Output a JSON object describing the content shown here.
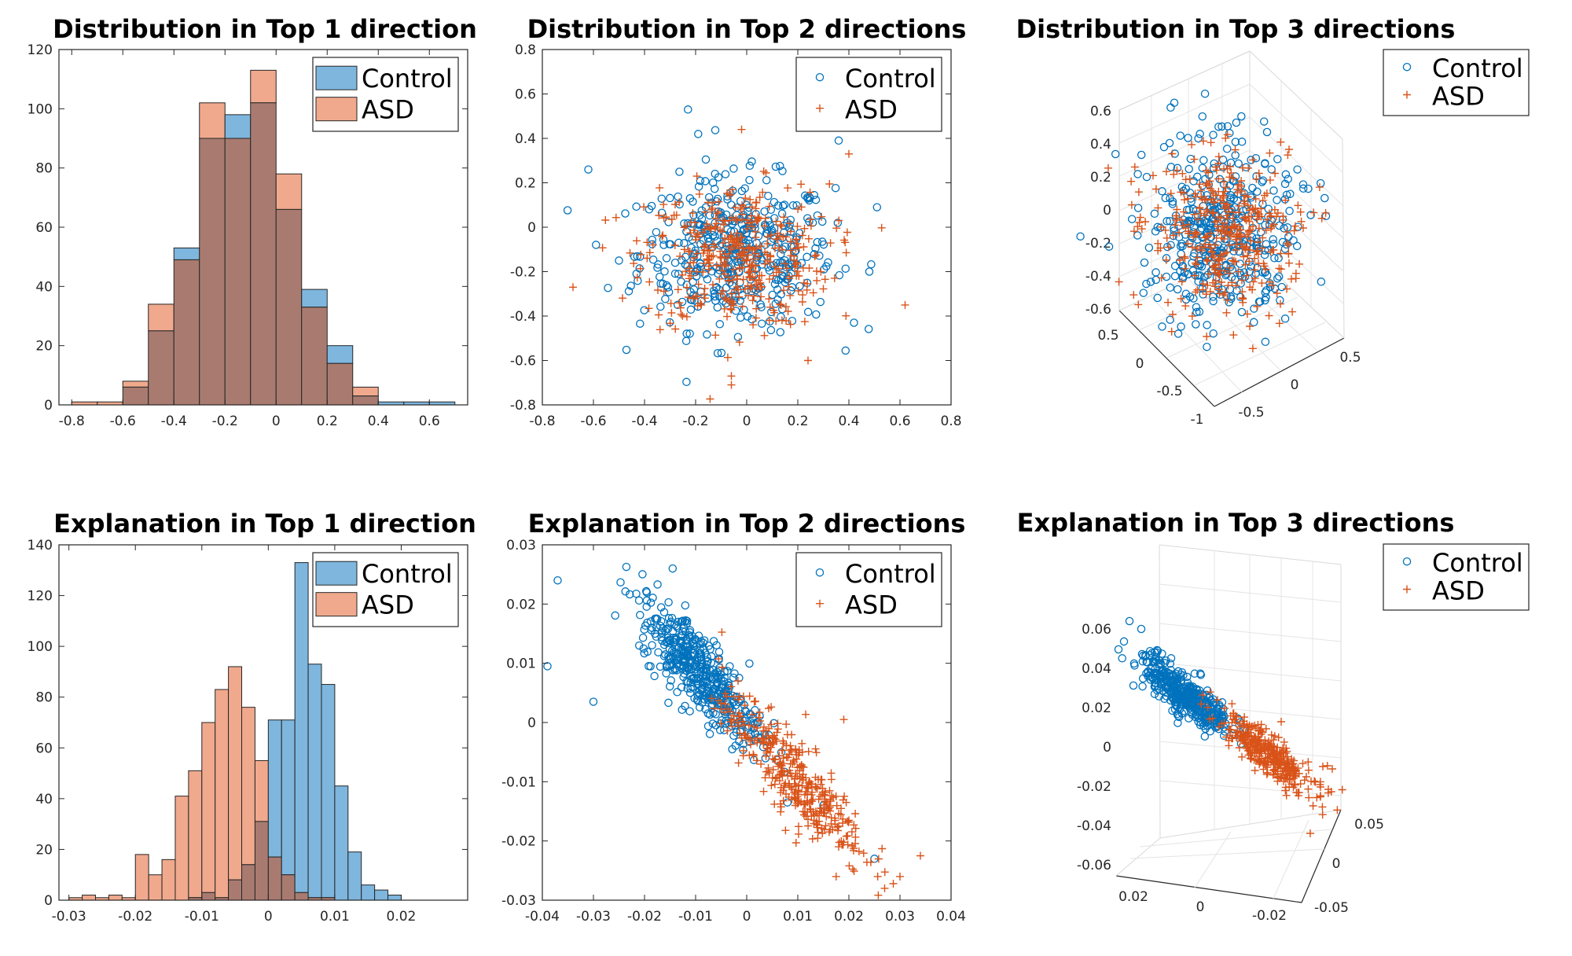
{
  "colors": {
    "control": "#0072BD",
    "asd": "#D95319",
    "control_fill": "#7EB6DE",
    "asd_fill": "#F0A98D",
    "overlap_fill": "#A97B70"
  },
  "chart_data": [
    {
      "type": "histogram",
      "title": "Distribution in Top 1 direction",
      "xlim": [
        -0.85,
        0.75
      ],
      "ylim": [
        0,
        120
      ],
      "xticks": [
        "-0.8",
        "-0.6",
        "-0.4",
        "-0.2",
        "0",
        "0.2",
        "0.4",
        "0.6"
      ],
      "yticks": [
        "0",
        "20",
        "40",
        "60",
        "80",
        "100",
        "120"
      ],
      "legend": {
        "position": "top-right",
        "entries": [
          "Control",
          "ASD"
        ]
      },
      "bin_edges": [
        -0.8,
        -0.7,
        -0.6,
        -0.5,
        -0.4,
        -0.3,
        -0.2,
        -0.1,
        0,
        0.1,
        0.2,
        0.3,
        0.4,
        0.5,
        0.6,
        0.7
      ],
      "series": [
        {
          "name": "Control",
          "values": [
            0,
            0,
            6,
            25,
            53,
            90,
            98,
            102,
            66,
            39,
            20,
            3,
            1,
            1,
            1
          ]
        },
        {
          "name": "ASD",
          "values": [
            1,
            1,
            8,
            34,
            49,
            102,
            90,
            113,
            78,
            33,
            14,
            6,
            0,
            0,
            0
          ]
        }
      ]
    },
    {
      "type": "scatter",
      "title": "Distribution in Top 2 directions",
      "xlim": [
        -0.8,
        0.8
      ],
      "ylim": [
        -0.8,
        0.8
      ],
      "xticks": [
        "-0.8",
        "-0.6",
        "-0.4",
        "-0.2",
        "0",
        "0.2",
        "0.4",
        "0.6",
        "0.8"
      ],
      "yticks": [
        "-0.8",
        "-0.6",
        "-0.4",
        "-0.2",
        "0",
        "0.2",
        "0.4",
        "0.6",
        "0.8"
      ],
      "legend": {
        "position": "top-right",
        "entries": [
          "Control",
          "ASD"
        ]
      },
      "series": [
        {
          "name": "Control",
          "marker": "circle",
          "count": 450,
          "center": [
            -0.04,
            -0.12
          ],
          "spread": [
            0.19,
            0.17
          ],
          "extra": [
            [
              -0.62,
              0.26
            ],
            [
              -0.23,
              0.53
            ],
            [
              -0.19,
              0.42
            ],
            [
              0.36,
              0.39
            ],
            [
              0.51,
              0.09
            ],
            [
              -0.5,
              -0.15
            ],
            [
              0.48,
              -0.2
            ],
            [
              0.42,
              -0.43
            ]
          ]
        },
        {
          "name": "ASD",
          "marker": "plus",
          "count": 400,
          "center": [
            -0.04,
            -0.13
          ],
          "spread": [
            0.18,
            0.16
          ],
          "extra": [
            [
              -0.68,
              -0.27
            ],
            [
              0.62,
              -0.35
            ],
            [
              -0.06,
              -0.71
            ],
            [
              -0.06,
              -0.67
            ],
            [
              0.24,
              -0.6
            ],
            [
              0.4,
              0.33
            ],
            [
              -0.02,
              0.44
            ]
          ]
        }
      ]
    },
    {
      "type": "scatter3d",
      "title": "Distribution in Top 3 directions",
      "zticks": [
        "-0.6",
        "-0.4",
        "-0.2",
        "0",
        "0.2",
        "0.4",
        "0.6"
      ],
      "xticks": [
        "-1",
        "-0.5",
        "0",
        "0.5"
      ],
      "yticks": [
        "-0.5",
        "0",
        "0.5"
      ],
      "legend": {
        "position": "top-right",
        "entries": [
          "Control",
          "ASD"
        ]
      },
      "series": [
        {
          "name": "Control",
          "marker": "circle",
          "count": 420
        },
        {
          "name": "ASD",
          "marker": "plus",
          "count": 380
        }
      ]
    },
    {
      "type": "histogram",
      "title": "Explanation in Top 1 direction",
      "xlim": [
        -0.0315,
        0.03
      ],
      "ylim": [
        0,
        140
      ],
      "xticks": [
        "-0.03",
        "-0.02",
        "-0.01",
        "0",
        "0.01",
        "0.02"
      ],
      "yticks": [
        "0",
        "20",
        "40",
        "60",
        "80",
        "100",
        "120",
        "140"
      ],
      "legend": {
        "position": "top-right",
        "entries": [
          "Control",
          "ASD"
        ]
      },
      "bin_edges": [
        -0.03,
        -0.028,
        -0.026,
        -0.024,
        -0.022,
        -0.02,
        -0.018,
        -0.016,
        -0.014,
        -0.012,
        -0.01,
        -0.008,
        -0.006,
        -0.004,
        -0.002,
        0,
        0.002,
        0.004,
        0.006,
        0.008,
        0.01,
        0.012,
        0.014,
        0.016,
        0.018,
        0.02,
        0.022,
        0.024,
        0.026
      ],
      "series": [
        {
          "name": "Control",
          "values": [
            0,
            0,
            0,
            0,
            0,
            0,
            0,
            0,
            0,
            1,
            3,
            1,
            8,
            14,
            31,
            71,
            71,
            133,
            93,
            85,
            45,
            19,
            6,
            4,
            2,
            0,
            0,
            0
          ]
        },
        {
          "name": "ASD",
          "values": [
            1,
            2,
            1,
            2,
            1,
            18,
            10,
            16,
            41,
            51,
            70,
            83,
            92,
            76,
            55,
            17,
            10,
            3,
            1,
            1,
            0,
            0,
            0,
            0,
            0,
            0,
            0,
            0
          ]
        }
      ]
    },
    {
      "type": "scatter",
      "title": "Explanation in Top 2 directions",
      "xlim": [
        -0.04,
        0.04
      ],
      "ylim": [
        -0.03,
        0.03
      ],
      "xticks": [
        "-0.04",
        "-0.03",
        "-0.02",
        "-0.01",
        "0",
        "0.01",
        "0.02",
        "0.03",
        "0.04"
      ],
      "yticks": [
        "-0.03",
        "-0.02",
        "-0.01",
        "0",
        "0.01",
        "0.02",
        "0.03"
      ],
      "legend": {
        "position": "top-right",
        "entries": [
          "Control",
          "ASD"
        ]
      },
      "series": [
        {
          "name": "Control",
          "marker": "circle",
          "count": 450,
          "center": [
            -0.009,
            0.0085
          ],
          "slope": -0.85,
          "spread": [
            0.006,
            0.0035
          ],
          "extra": [
            [
              -0.039,
              0.0095
            ],
            [
              -0.037,
              0.024
            ],
            [
              -0.0145,
              0.026
            ],
            [
              -0.03,
              0.0035
            ],
            [
              0.025,
              -0.023
            ],
            [
              0.015,
              -0.014
            ]
          ]
        },
        {
          "name": "ASD",
          "marker": "plus",
          "count": 380,
          "center": [
            0.009,
            -0.009
          ],
          "slope": -0.85,
          "spread": [
            0.007,
            0.0035
          ],
          "extra": [
            [
              0.034,
              -0.0225
            ],
            [
              0.03,
              -0.026
            ],
            [
              0.027,
              -0.028
            ],
            [
              0.0175,
              -0.026
            ],
            [
              0.019,
              0.0005
            ]
          ]
        }
      ]
    },
    {
      "type": "scatter3d",
      "title": "Explanation in Top 3 directions",
      "zticks": [
        "-0.06",
        "-0.04",
        "-0.02",
        "0",
        "0.02",
        "0.04",
        "0.06"
      ],
      "xticks": [
        "0.02",
        "0",
        "-0.02"
      ],
      "yticks": [
        "-0.05",
        "0",
        "0.05"
      ],
      "legend": {
        "position": "top-right",
        "entries": [
          "Control",
          "ASD"
        ]
      },
      "series": [
        {
          "name": "Control",
          "marker": "circle",
          "count": 420
        },
        {
          "name": "ASD",
          "marker": "plus",
          "count": 360
        }
      ]
    }
  ]
}
